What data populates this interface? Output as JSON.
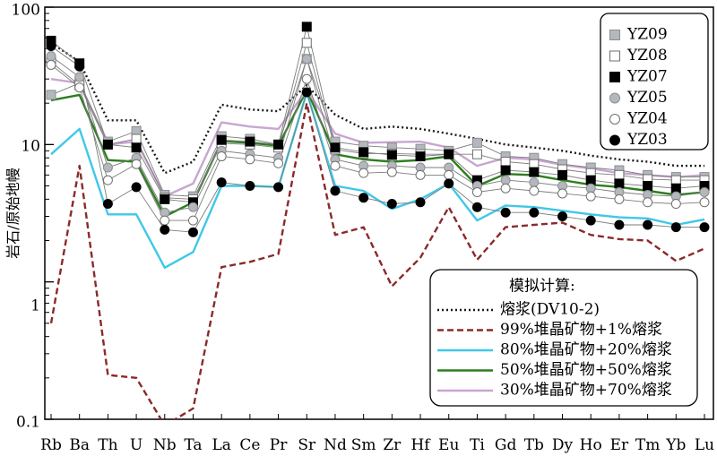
{
  "chart_data": {
    "type": "line",
    "ylabel": "岩石/原始地幔",
    "yscale": "log",
    "ylim": [
      0.1,
      100
    ],
    "y_ticks": [
      "0.1",
      "1",
      "10",
      "100"
    ],
    "categories": [
      "Rb",
      "Ba",
      "Th",
      "U",
      "Nb",
      "Ta",
      "La",
      "Ce",
      "Pr",
      "Sr",
      "Nd",
      "Sm",
      "Zr",
      "Hf",
      "Eu",
      "Ti",
      "Gd",
      "Tb",
      "Dy",
      "Ho",
      "Er",
      "Tm",
      "Yb",
      "Lu"
    ],
    "samples": [
      {
        "name": "YZ09",
        "marker": "square",
        "fill": "#b4b8bd",
        "stroke": "#8a8e93",
        "values": [
          23,
          28,
          10.5,
          12.5,
          4.3,
          4.2,
          11.5,
          11,
          10,
          42,
          10.5,
          9.8,
          9.5,
          9.3,
          9,
          10.3,
          8.2,
          8,
          7.2,
          6.8,
          6.5,
          6,
          5.8,
          5.8
        ]
      },
      {
        "name": "YZ08",
        "marker": "square-open",
        "fill": "#ffffff",
        "stroke": "#6e6e6e",
        "values": [
          40,
          27,
          10,
          11,
          4.1,
          4,
          10.2,
          10,
          9.5,
          55,
          9.2,
          8.6,
          8.6,
          8.5,
          8.5,
          8.5,
          7.5,
          7.2,
          6.6,
          6.2,
          6,
          5.6,
          5.5,
          5.5
        ]
      },
      {
        "name": "YZ07",
        "marker": "square",
        "fill": "#000000",
        "stroke": "#000000",
        "values": [
          57,
          39,
          10,
          9.5,
          4,
          3.8,
          10.8,
          10.5,
          10,
          72,
          9.5,
          8.8,
          8.4,
          8.2,
          8.5,
          5.5,
          6.5,
          6.3,
          6,
          5.5,
          5.2,
          5,
          4.8,
          5
        ]
      },
      {
        "name": "YZ05",
        "marker": "circle",
        "fill": "#b4b8bd",
        "stroke": "#8a8e93",
        "values": [
          44,
          31,
          6.8,
          8,
          3.2,
          3.5,
          9,
          8.5,
          8,
          42,
          7.8,
          7,
          7,
          6.8,
          6.8,
          5,
          5.5,
          5.3,
          5,
          4.8,
          4.5,
          4.3,
          4.2,
          4.5
        ]
      },
      {
        "name": "YZ04",
        "marker": "circle-open",
        "fill": "#ffffff",
        "stroke": "#6e6e6e",
        "values": [
          38,
          26,
          5.5,
          7.2,
          2.8,
          2.8,
          8.2,
          7.8,
          7.3,
          30,
          7,
          6.2,
          6.3,
          6,
          6,
          4.5,
          4.8,
          4.6,
          4.4,
          4.2,
          4,
          3.8,
          3.7,
          3.8
        ]
      },
      {
        "name": "YZ03",
        "marker": "circle",
        "fill": "#000000",
        "stroke": "#000000",
        "values": [
          52,
          37,
          3.7,
          4.9,
          2.4,
          2.3,
          5.3,
          5,
          4.9,
          24,
          4.6,
          4.1,
          3.7,
          3.8,
          5.2,
          3.5,
          3.2,
          3.2,
          3,
          2.8,
          2.6,
          2.6,
          2.5,
          2.5
        ]
      }
    ],
    "model_title": "模拟计算:",
    "models": [
      {
        "name": "熔浆(DV10-2)",
        "color": "#1a1a1a",
        "style": "dotted",
        "values": [
          55,
          40,
          15,
          15,
          6.2,
          7.5,
          19.5,
          18,
          17.5,
          27,
          16.5,
          13,
          13.5,
          13,
          12,
          11,
          10,
          9.5,
          9,
          8.3,
          7.8,
          7.5,
          7,
          7
        ]
      },
      {
        "name": "99%堆晶矿物+1%熔浆",
        "color": "#8b2a2a",
        "style": "dashed",
        "values": [
          0.5,
          7,
          0.21,
          0.2,
          0.09,
          0.12,
          1.28,
          1.4,
          1.6,
          20,
          2.2,
          2.5,
          0.93,
          1.5,
          3.5,
          1.45,
          2.5,
          2.6,
          2.7,
          2.2,
          2.05,
          2,
          1.42,
          1.75
        ]
      },
      {
        "name": "80%堆晶矿物+20%熔浆",
        "color": "#3fc8e8",
        "style": "solid",
        "values": [
          8.5,
          13,
          3.1,
          3.1,
          1.27,
          1.65,
          5,
          5,
          4.9,
          24,
          5,
          4.6,
          3.4,
          4,
          5.2,
          2.8,
          3.6,
          3.5,
          3.3,
          3.1,
          2.95,
          2.9,
          2.6,
          2.85
        ]
      },
      {
        "name": "50%堆晶矿物+50%熔浆",
        "color": "#2e7d20",
        "style": "solid",
        "values": [
          21,
          23,
          7.7,
          7.5,
          3,
          3.8,
          10.6,
          10.3,
          9.8,
          25,
          8.5,
          7.8,
          7.5,
          7.7,
          8.2,
          5,
          6.1,
          6,
          5.5,
          5.1,
          4.9,
          4.6,
          4.3,
          4.5
        ]
      },
      {
        "name": "30%堆晶矿物+70%熔浆",
        "color": "#c9a6d1",
        "style": "solid",
        "values": [
          30,
          28,
          10,
          10.5,
          4.2,
          5.2,
          14.5,
          13.5,
          13,
          25,
          12,
          10.3,
          10.4,
          10.5,
          9.5,
          7,
          8,
          7.8,
          7.1,
          6.7,
          6.2,
          6,
          5.8,
          6
        ]
      }
    ]
  }
}
